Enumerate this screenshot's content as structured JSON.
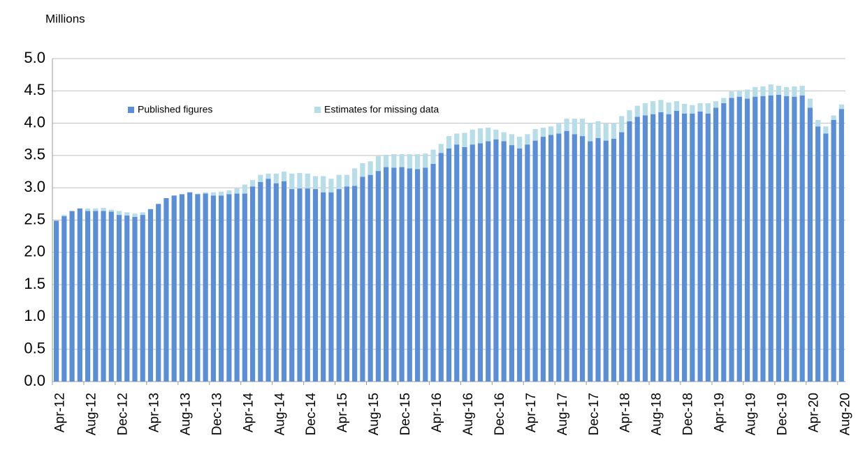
{
  "chart_data": {
    "type": "stacked_bar",
    "y_axis_label": "Millions",
    "categories": [
      "Apr-12",
      null,
      null,
      null,
      "Aug-12",
      null,
      null,
      null,
      "Dec-12",
      null,
      null,
      null,
      "Apr-13",
      null,
      null,
      null,
      "Aug-13",
      null,
      null,
      null,
      "Dec-13",
      null,
      null,
      null,
      "Apr-14",
      null,
      null,
      null,
      "Aug-14",
      null,
      null,
      null,
      "Dec-14",
      null,
      null,
      null,
      "Apr-15",
      null,
      null,
      null,
      "Aug-15",
      null,
      null,
      null,
      "Dec-15",
      null,
      null,
      null,
      "Apr-16",
      null,
      null,
      null,
      "Aug-16",
      null,
      null,
      null,
      "Dec-16",
      null,
      null,
      null,
      "Apr-17",
      null,
      null,
      null,
      "Aug-17",
      null,
      null,
      null,
      "Dec-17",
      null,
      null,
      null,
      "Apr-18",
      null,
      null,
      null,
      "Aug-18",
      null,
      null,
      null,
      "Dec-18",
      null,
      null,
      null,
      "Apr-19",
      null,
      null,
      null,
      "Aug-19",
      null,
      null,
      null,
      "Dec-19",
      null,
      null,
      null,
      "Apr-20",
      null,
      null,
      null,
      "Aug-20"
    ],
    "series": [
      {
        "name": "Published figures",
        "color": "#5a8fd8",
        "values": [
          2.49,
          2.56,
          2.64,
          2.68,
          2.64,
          2.64,
          2.64,
          2.63,
          2.58,
          2.57,
          2.55,
          2.58,
          2.67,
          2.75,
          2.84,
          2.88,
          2.9,
          2.93,
          2.9,
          2.91,
          2.88,
          2.88,
          2.9,
          2.91,
          2.91,
          3.02,
          3.09,
          3.14,
          3.07,
          3.1,
          2.98,
          2.99,
          2.99,
          2.98,
          2.93,
          2.93,
          2.98,
          3.02,
          3.03,
          3.17,
          3.2,
          3.26,
          3.32,
          3.31,
          3.32,
          3.3,
          3.29,
          3.31,
          3.37,
          3.54,
          3.61,
          3.67,
          3.63,
          3.67,
          3.69,
          3.72,
          3.75,
          3.72,
          3.66,
          3.61,
          3.67,
          3.73,
          3.79,
          3.82,
          3.84,
          3.88,
          3.83,
          3.8,
          3.72,
          3.77,
          3.73,
          3.76,
          3.86,
          4.03,
          4.1,
          4.12,
          4.14,
          4.17,
          4.14,
          4.19,
          4.15,
          4.15,
          4.18,
          4.15,
          4.24,
          4.31,
          4.39,
          4.41,
          4.38,
          4.41,
          4.42,
          4.43,
          4.44,
          4.42,
          4.41,
          4.43,
          4.24,
          3.95,
          3.84,
          4.05,
          4.22
        ]
      },
      {
        "name": "Estimates for missing data",
        "color": "#b7dde9",
        "values": [
          0,
          0.02,
          0,
          0,
          0.04,
          0.04,
          0.05,
          0.03,
          0.06,
          0.05,
          0.05,
          0.04,
          0,
          0,
          0,
          0,
          0,
          0,
          0.01,
          0.02,
          0.05,
          0.06,
          0.06,
          0.08,
          0.14,
          0.1,
          0.11,
          0.08,
          0.15,
          0.15,
          0.24,
          0.24,
          0.23,
          0.2,
          0.25,
          0.21,
          0.22,
          0.18,
          0.27,
          0.21,
          0.21,
          0.23,
          0.19,
          0.21,
          0.2,
          0.22,
          0.23,
          0.22,
          0.22,
          0.14,
          0.19,
          0.17,
          0.22,
          0.23,
          0.23,
          0.21,
          0.15,
          0.14,
          0.17,
          0.18,
          0.16,
          0.18,
          0.14,
          0.13,
          0.15,
          0.19,
          0.24,
          0.27,
          0.28,
          0.26,
          0.26,
          0.24,
          0.25,
          0.17,
          0.17,
          0.19,
          0.2,
          0.19,
          0.18,
          0.15,
          0.15,
          0.13,
          0.13,
          0.16,
          0.1,
          0.08,
          0.1,
          0.1,
          0.14,
          0.15,
          0.15,
          0.17,
          0.14,
          0.14,
          0.16,
          0.15,
          0.14,
          0.1,
          0.11,
          0.07,
          0.07
        ]
      }
    ],
    "ylim": [
      0,
      5
    ],
    "yticks": [
      {
        "value": 0,
        "label": "0.0"
      },
      0.5,
      {
        "value": 1,
        "label": "1.0"
      },
      1.5,
      {
        "value": 2,
        "label": "2.0"
      },
      2.5,
      {
        "value": 3,
        "label": "3.0"
      },
      3.5,
      {
        "value": 4,
        "label": "4.0"
      },
      4.5,
      {
        "value": 5,
        "label": "5.0"
      }
    ],
    "grid": true,
    "legend": "top-left"
  }
}
